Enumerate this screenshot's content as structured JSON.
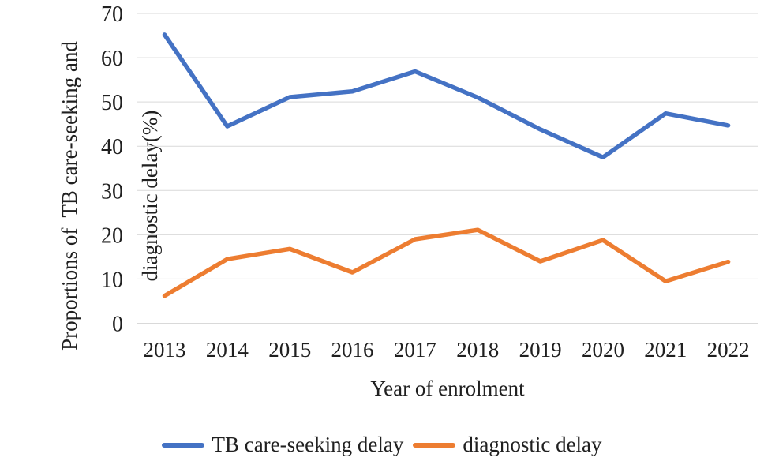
{
  "chart_data": {
    "type": "line",
    "title": "",
    "xlabel": "Year of enrolment",
    "ylabel_line1": "Proportions of  TB care-seeking and",
    "ylabel_line2": "diagnostic delay(%)",
    "categories": [
      "2013",
      "2014",
      "2015",
      "2016",
      "2017",
      "2018",
      "2019",
      "2020",
      "2021",
      "2022"
    ],
    "series": [
      {
        "name": "TB care-seeking delay",
        "color": "#4472C4",
        "values": [
          65.2,
          44.5,
          51.1,
          52.4,
          56.9,
          51.0,
          43.8,
          37.5,
          47.4,
          44.7
        ]
      },
      {
        "name": "diagnostic delay",
        "color": "#ED7D31",
        "values": [
          6.2,
          14.5,
          16.8,
          11.5,
          19.0,
          21.1,
          14.0,
          18.8,
          9.5,
          13.9
        ]
      }
    ],
    "yticks": [
      0,
      10,
      20,
      30,
      40,
      50,
      60,
      70
    ],
    "ylim": [
      0,
      70
    ],
    "grid": "horizontal",
    "gridline_color": "#D9D9D9",
    "text_color": "#202020",
    "legend_position": "bottom"
  }
}
